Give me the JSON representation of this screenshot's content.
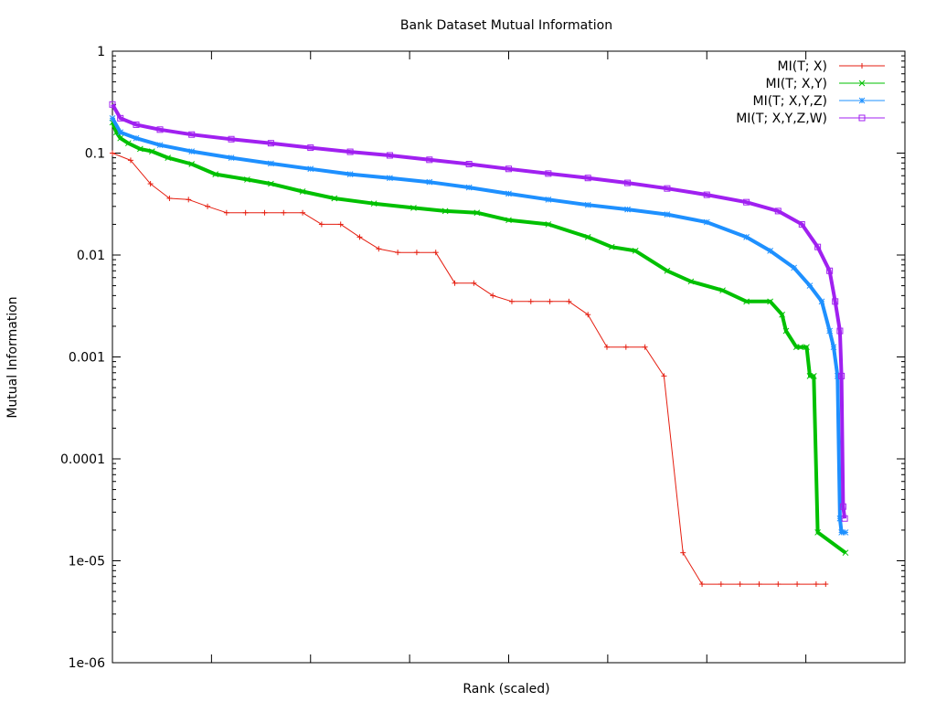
{
  "chart_data": {
    "type": "line",
    "title": "Bank Dataset Mutual Information",
    "xlabel": "Rank (scaled)",
    "ylabel": "Mutual Information",
    "xlim": [
      0,
      1
    ],
    "ylim": [
      1e-06,
      1
    ],
    "y_scale": "log",
    "y_ticks": [
      {
        "value": 1,
        "label": "1"
      },
      {
        "value": 0.1,
        "label": "0.1"
      },
      {
        "value": 0.01,
        "label": "0.01"
      },
      {
        "value": 0.001,
        "label": "0.001"
      },
      {
        "value": 0.0001,
        "label": "0.0001"
      },
      {
        "value": 1e-05,
        "label": "1e-05"
      },
      {
        "value": 1e-06,
        "label": "1e-06"
      }
    ],
    "x_ticks": [
      0,
      0.125,
      0.25,
      0.375,
      0.5,
      0.625,
      0.75,
      0.875,
      1.0
    ],
    "grid": false,
    "legend_position": "top-right",
    "series": [
      {
        "name": "MI(T; X)",
        "color": "#e51e10",
        "marker": "plus",
        "x": [
          0.0,
          0.023,
          0.048,
          0.072,
          0.096,
          0.12,
          0.144,
          0.168,
          0.192,
          0.216,
          0.24,
          0.264,
          0.288,
          0.312,
          0.336,
          0.36,
          0.384,
          0.408,
          0.432,
          0.456,
          0.48,
          0.504,
          0.528,
          0.552,
          0.576,
          0.6,
          0.624,
          0.648,
          0.672,
          0.696,
          0.72,
          0.744,
          0.768,
          0.792,
          0.816,
          0.84,
          0.864,
          0.888,
          0.9
        ],
        "y": [
          0.1,
          0.085,
          0.05,
          0.036,
          0.035,
          0.03,
          0.026,
          0.026,
          0.026,
          0.026,
          0.026,
          0.02,
          0.02,
          0.015,
          0.0115,
          0.0106,
          0.0106,
          0.0106,
          0.0053,
          0.0053,
          0.004,
          0.0035,
          0.0035,
          0.0035,
          0.0035,
          0.0026,
          0.00125,
          0.00125,
          0.00125,
          0.00065,
          1.2e-05,
          5.9e-06,
          5.9e-06,
          5.9e-06,
          5.9e-06,
          5.9e-06,
          5.9e-06,
          5.9e-06,
          5.9e-06
        ]
      },
      {
        "name": "MI(T; X,Y)",
        "color": "#00c000",
        "marker": "cross",
        "x": [
          0.0,
          0.005,
          0.01,
          0.02,
          0.035,
          0.05,
          0.07,
          0.1,
          0.13,
          0.17,
          0.2,
          0.24,
          0.28,
          0.33,
          0.38,
          0.42,
          0.46,
          0.5,
          0.55,
          0.6,
          0.63,
          0.66,
          0.7,
          0.73,
          0.77,
          0.8,
          0.83,
          0.845,
          0.85,
          0.863,
          0.868,
          0.876,
          0.88,
          0.885,
          0.89,
          0.925
        ],
        "y": [
          0.2,
          0.16,
          0.14,
          0.125,
          0.11,
          0.104,
          0.09,
          0.078,
          0.062,
          0.055,
          0.05,
          0.042,
          0.036,
          0.032,
          0.029,
          0.027,
          0.026,
          0.022,
          0.02,
          0.015,
          0.012,
          0.011,
          0.007,
          0.0055,
          0.0045,
          0.0035,
          0.0035,
          0.0026,
          0.0018,
          0.00125,
          0.00125,
          0.00125,
          0.00065,
          0.00065,
          1.9e-05,
          1.2e-05
        ]
      },
      {
        "name": "MI(T; X,Y,Z)",
        "color": "#1e90ff",
        "marker": "star",
        "x": [
          0.0,
          0.01,
          0.03,
          0.06,
          0.1,
          0.15,
          0.2,
          0.25,
          0.3,
          0.35,
          0.4,
          0.45,
          0.5,
          0.55,
          0.6,
          0.65,
          0.7,
          0.75,
          0.8,
          0.83,
          0.86,
          0.88,
          0.895,
          0.905,
          0.91,
          0.915,
          0.918,
          0.92,
          0.925
        ],
        "y": [
          0.22,
          0.16,
          0.14,
          0.12,
          0.104,
          0.09,
          0.079,
          0.07,
          0.062,
          0.057,
          0.052,
          0.046,
          0.04,
          0.035,
          0.031,
          0.028,
          0.025,
          0.021,
          0.015,
          0.011,
          0.0075,
          0.005,
          0.0035,
          0.0018,
          0.00125,
          0.00065,
          2.6e-05,
          1.9e-05,
          1.9e-05
        ]
      },
      {
        "name": "MI(T; X,Y,Z,W)",
        "color": "#a020f0",
        "marker": "box",
        "x": [
          0.0,
          0.01,
          0.03,
          0.06,
          0.1,
          0.15,
          0.2,
          0.25,
          0.3,
          0.35,
          0.4,
          0.45,
          0.5,
          0.55,
          0.6,
          0.65,
          0.7,
          0.75,
          0.8,
          0.84,
          0.87,
          0.89,
          0.905,
          0.912,
          0.918,
          0.92,
          0.922,
          0.924
        ],
        "y": [
          0.3,
          0.22,
          0.19,
          0.17,
          0.152,
          0.137,
          0.125,
          0.113,
          0.103,
          0.095,
          0.086,
          0.078,
          0.07,
          0.063,
          0.057,
          0.051,
          0.045,
          0.039,
          0.033,
          0.027,
          0.02,
          0.012,
          0.007,
          0.0035,
          0.0018,
          0.00065,
          3.4e-05,
          2.6e-05
        ]
      }
    ]
  }
}
